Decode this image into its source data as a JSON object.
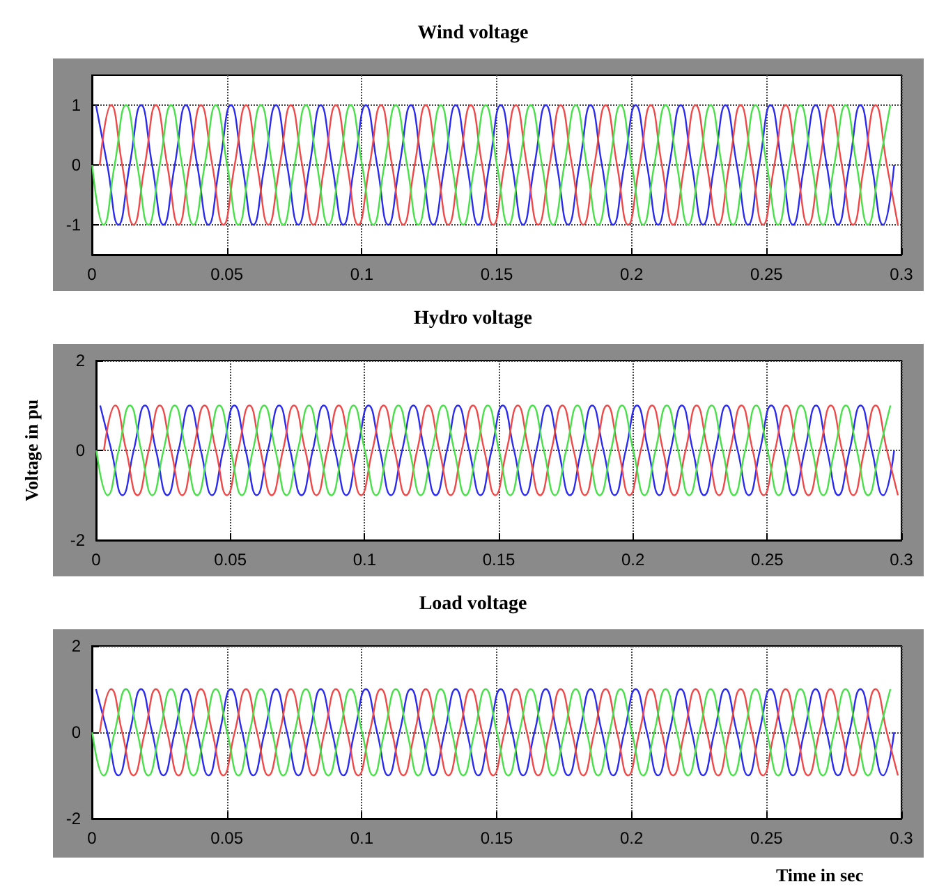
{
  "chart_data": [
    {
      "type": "line",
      "title": "Wind voltage",
      "xlim": [
        0,
        0.3
      ],
      "xticks": [
        0,
        0.05,
        0.1,
        0.15,
        0.2,
        0.25,
        0.3
      ],
      "ylim": [
        -1.5,
        1.5
      ],
      "yticks": [
        -1,
        0,
        1
      ],
      "grid": true,
      "series": [
        {
          "color": "#2a2af0",
          "x": [
            0.0015,
            0.0057,
            0.0098,
            0.014,
            0.0182,
            0.0223,
            0.0265,
            0.0307,
            0.0348,
            0.039,
            0.0432,
            0.0473,
            0.0515,
            0.0557,
            0.0598,
            0.064,
            0.0682,
            0.0723,
            0.0765,
            0.0807,
            0.0848,
            0.089,
            0.0932,
            0.0973,
            0.1015,
            0.1057,
            0.1098,
            0.114,
            0.1182,
            0.1223,
            0.1265,
            0.1307,
            0.1348,
            0.139,
            0.1432,
            0.1473,
            0.1515,
            0.1557,
            0.1598,
            0.164,
            0.1682,
            0.1723,
            0.1765,
            0.1807,
            0.1848,
            0.189,
            0.1932,
            0.1973,
            0.2015,
            0.2057,
            0.2098,
            0.214,
            0.2182,
            0.2223,
            0.2265,
            0.2307,
            0.2348,
            0.239,
            0.2432,
            0.2473,
            0.2515,
            0.2557,
            0.2598,
            0.264,
            0.2682,
            0.2723,
            0.2765,
            0.2807,
            0.2848,
            0.289,
            0.2932,
            0.2973
          ],
          "values": [
            1,
            0,
            -1,
            0,
            1,
            0,
            -1,
            0,
            1,
            0,
            -1,
            0,
            1,
            0,
            -1,
            0,
            1,
            0,
            -1,
            0,
            1,
            0,
            -1,
            0,
            1,
            0,
            -1,
            0,
            1,
            0,
            -1,
            0,
            1,
            0,
            -1,
            0,
            1,
            0,
            -1,
            0,
            1,
            0,
            -1,
            0,
            1,
            0,
            -1,
            0,
            1,
            0,
            -1,
            0,
            1,
            0,
            -1,
            0,
            1,
            0,
            -1,
            0,
            1,
            0,
            -1,
            0,
            1,
            0,
            -1,
            0,
            1,
            0,
            -1,
            0
          ]
        },
        {
          "color": "#f04848",
          "x": [
            0.0029,
            0.0071,
            0.0112,
            0.0154,
            0.0196,
            0.0237,
            0.0279,
            0.0321,
            0.0362,
            0.0404,
            0.0446,
            0.0487,
            0.0529,
            0.0571,
            0.0612,
            0.0654,
            0.0696,
            0.0737,
            0.0779,
            0.0821,
            0.0862,
            0.0904,
            0.0946,
            0.0987,
            0.1029,
            0.1071,
            0.1112,
            0.1154,
            0.1196,
            0.1237,
            0.1279,
            0.1321,
            0.1362,
            0.1404,
            0.1446,
            0.1487,
            0.1529,
            0.1571,
            0.1612,
            0.1654,
            0.1696,
            0.1737,
            0.1779,
            0.1821,
            0.1862,
            0.1904,
            0.1946,
            0.1987,
            0.2029,
            0.2071,
            0.2112,
            0.2154,
            0.2196,
            0.2237,
            0.2279,
            0.2321,
            0.2362,
            0.2404,
            0.2446,
            0.2487,
            0.2529,
            0.2571,
            0.2612,
            0.2654,
            0.2696,
            0.2737,
            0.2779,
            0.2821,
            0.2862,
            0.2904,
            0.2946,
            0.2987
          ],
          "values": [
            0,
            1,
            0,
            -1,
            0,
            1,
            0,
            -1,
            0,
            1,
            0,
            -1,
            0,
            1,
            0,
            -1,
            0,
            1,
            0,
            -1,
            0,
            1,
            0,
            -1,
            0,
            1,
            0,
            -1,
            0,
            1,
            0,
            -1,
            0,
            1,
            0,
            -1,
            0,
            1,
            0,
            -1,
            0,
            1,
            0,
            -1,
            0,
            1,
            0,
            -1,
            0,
            1,
            0,
            -1,
            0,
            1,
            0,
            -1,
            0,
            1,
            0,
            -1,
            0,
            1,
            0,
            -1,
            0,
            1,
            0,
            -1,
            0,
            1,
            0,
            -1
          ]
        },
        {
          "color": "#48e048",
          "x": [
            0.0001,
            0.0043,
            0.0084,
            0.0126,
            0.0168,
            0.0209,
            0.0251,
            0.0293,
            0.0334,
            0.0376,
            0.0418,
            0.0459,
            0.0501,
            0.0543,
            0.0584,
            0.0626,
            0.0668,
            0.0709,
            0.0751,
            0.0793,
            0.0834,
            0.0876,
            0.0918,
            0.0959,
            0.1001,
            0.1043,
            0.1084,
            0.1126,
            0.1168,
            0.1209,
            0.1251,
            0.1293,
            0.1334,
            0.1376,
            0.1418,
            0.1459,
            0.1501,
            0.1543,
            0.1584,
            0.1626,
            0.1668,
            0.1709,
            0.1751,
            0.1793,
            0.1834,
            0.1876,
            0.1918,
            0.1959,
            0.2001,
            0.2043,
            0.2084,
            0.2126,
            0.2168,
            0.2209,
            0.2251,
            0.2293,
            0.2334,
            0.2376,
            0.2418,
            0.2459,
            0.2501,
            0.2543,
            0.2584,
            0.2626,
            0.2668,
            0.2709,
            0.2751,
            0.2793,
            0.2834,
            0.2876,
            0.2918,
            0.2959
          ],
          "values": [
            0,
            -1,
            0,
            1,
            0,
            -1,
            0,
            1,
            0,
            -1,
            0,
            1,
            0,
            -1,
            0,
            1,
            0,
            -1,
            0,
            1,
            0,
            -1,
            0,
            1,
            0,
            -1,
            0,
            1,
            0,
            -1,
            0,
            1,
            0,
            -1,
            0,
            1,
            0,
            -1,
            0,
            1,
            0,
            -1,
            0,
            1,
            0,
            -1,
            0,
            1,
            0,
            -1,
            0,
            1,
            0,
            -1,
            0,
            1,
            0,
            -1,
            0,
            1,
            0,
            -1,
            0,
            1,
            0,
            -1,
            0,
            1,
            0,
            -1,
            0,
            1
          ]
        }
      ]
    },
    {
      "type": "line",
      "title": "Hydro voltage",
      "ylabel": "Voltage in pu",
      "xlim": [
        0,
        0.3
      ],
      "xticks": [
        0,
        0.05,
        0.1,
        0.15,
        0.2,
        0.25,
        0.3
      ],
      "ylim": [
        -2,
        2
      ],
      "yticks": [
        -2,
        0,
        2
      ],
      "grid": true,
      "series": [
        {
          "color": "#2a2af0",
          "x": [
            0.0015,
            0.0057,
            0.0098,
            0.014,
            0.0182,
            0.0223,
            0.0265,
            0.0307,
            0.0348,
            0.039,
            0.0432,
            0.0473,
            0.0515,
            0.0557,
            0.0598,
            0.064,
            0.0682,
            0.0723,
            0.0765,
            0.0807,
            0.0848,
            0.089,
            0.0932,
            0.0973,
            0.1015,
            0.1057,
            0.1098,
            0.114,
            0.1182,
            0.1223,
            0.1265,
            0.1307,
            0.1348,
            0.139,
            0.1432,
            0.1473,
            0.1515,
            0.1557,
            0.1598,
            0.164,
            0.1682,
            0.1723,
            0.1765,
            0.1807,
            0.1848,
            0.189,
            0.1932,
            0.1973,
            0.2015,
            0.2057,
            0.2098,
            0.214,
            0.2182,
            0.2223,
            0.2265,
            0.2307,
            0.2348,
            0.239,
            0.2432,
            0.2473,
            0.2515,
            0.2557,
            0.2598,
            0.264,
            0.2682,
            0.2723,
            0.2765,
            0.2807,
            0.2848,
            0.289,
            0.2932,
            0.2973
          ],
          "values": [
            1,
            0,
            -1,
            0,
            1,
            0,
            -1,
            0,
            1,
            0,
            -1,
            0,
            1,
            0,
            -1,
            0,
            1,
            0,
            -1,
            0,
            1,
            0,
            -1,
            0,
            1,
            0,
            -1,
            0,
            1,
            0,
            -1,
            0,
            1,
            0,
            -1,
            0,
            1,
            0,
            -1,
            0,
            1,
            0,
            -1,
            0,
            1,
            0,
            -1,
            0,
            1,
            0,
            -1,
            0,
            1,
            0,
            -1,
            0,
            1,
            0,
            -1,
            0,
            1,
            0,
            -1,
            0,
            1,
            0,
            -1,
            0,
            1,
            0,
            -1,
            0
          ]
        },
        {
          "color": "#f04848",
          "x": [
            0.0029,
            0.0071,
            0.0112,
            0.0154,
            0.0196,
            0.0237,
            0.0279,
            0.0321,
            0.0362,
            0.0404,
            0.0446,
            0.0487,
            0.0529,
            0.0571,
            0.0612,
            0.0654,
            0.0696,
            0.0737,
            0.0779,
            0.0821,
            0.0862,
            0.0904,
            0.0946,
            0.0987,
            0.1029,
            0.1071,
            0.1112,
            0.1154,
            0.1196,
            0.1237,
            0.1279,
            0.1321,
            0.1362,
            0.1404,
            0.1446,
            0.1487,
            0.1529,
            0.1571,
            0.1612,
            0.1654,
            0.1696,
            0.1737,
            0.1779,
            0.1821,
            0.1862,
            0.1904,
            0.1946,
            0.1987,
            0.2029,
            0.2071,
            0.2112,
            0.2154,
            0.2196,
            0.2237,
            0.2279,
            0.2321,
            0.2362,
            0.2404,
            0.2446,
            0.2487,
            0.2529,
            0.2571,
            0.2612,
            0.2654,
            0.2696,
            0.2737,
            0.2779,
            0.2821,
            0.2862,
            0.2904,
            0.2946,
            0.2987
          ],
          "values": [
            0,
            1,
            0,
            -1,
            0,
            1,
            0,
            -1,
            0,
            1,
            0,
            -1,
            0,
            1,
            0,
            -1,
            0,
            1,
            0,
            -1,
            0,
            1,
            0,
            -1,
            0,
            1,
            0,
            -1,
            0,
            1,
            0,
            -1,
            0,
            1,
            0,
            -1,
            0,
            1,
            0,
            -1,
            0,
            1,
            0,
            -1,
            0,
            1,
            0,
            -1,
            0,
            1,
            0,
            -1,
            0,
            1,
            0,
            -1,
            0,
            1,
            0,
            -1,
            0,
            1,
            0,
            -1,
            0,
            1,
            0,
            -1,
            0,
            1,
            0,
            -1
          ]
        },
        {
          "color": "#48e048",
          "x": [
            0.0001,
            0.0043,
            0.0084,
            0.0126,
            0.0168,
            0.0209,
            0.0251,
            0.0293,
            0.0334,
            0.0376,
            0.0418,
            0.0459,
            0.0501,
            0.0543,
            0.0584,
            0.0626,
            0.0668,
            0.0709,
            0.0751,
            0.0793,
            0.0834,
            0.0876,
            0.0918,
            0.0959,
            0.1001,
            0.1043,
            0.1084,
            0.1126,
            0.1168,
            0.1209,
            0.1251,
            0.1293,
            0.1334,
            0.1376,
            0.1418,
            0.1459,
            0.1501,
            0.1543,
            0.1584,
            0.1626,
            0.1668,
            0.1709,
            0.1751,
            0.1793,
            0.1834,
            0.1876,
            0.1918,
            0.1959,
            0.2001,
            0.2043,
            0.2084,
            0.2126,
            0.2168,
            0.2209,
            0.2251,
            0.2293,
            0.2334,
            0.2376,
            0.2418,
            0.2459,
            0.2501,
            0.2543,
            0.2584,
            0.2626,
            0.2668,
            0.2709,
            0.2751,
            0.2793,
            0.2834,
            0.2876,
            0.2918,
            0.2959
          ],
          "values": [
            0,
            -1,
            0,
            1,
            0,
            -1,
            0,
            1,
            0,
            -1,
            0,
            1,
            0,
            -1,
            0,
            1,
            0,
            -1,
            0,
            1,
            0,
            -1,
            0,
            1,
            0,
            -1,
            0,
            1,
            0,
            -1,
            0,
            1,
            0,
            -1,
            0,
            1,
            0,
            -1,
            0,
            1,
            0,
            -1,
            0,
            1,
            0,
            -1,
            0,
            1,
            0,
            -1,
            0,
            1,
            0,
            -1,
            0,
            1,
            0,
            -1,
            0,
            1,
            0,
            -1,
            0,
            1,
            0,
            -1,
            0,
            1,
            0,
            -1,
            0,
            1
          ]
        }
      ]
    },
    {
      "type": "line",
      "title": "Load voltage",
      "xlabel": "Time in sec",
      "xlim": [
        0,
        0.3
      ],
      "xticks": [
        0,
        0.05,
        0.1,
        0.15,
        0.2,
        0.25,
        0.3
      ],
      "ylim": [
        -2,
        2
      ],
      "yticks": [
        -2,
        0,
        2
      ],
      "grid": true,
      "series": [
        {
          "color": "#2a2af0",
          "x": [
            0.0015,
            0.0057,
            0.0098,
            0.014,
            0.0182,
            0.0223,
            0.0265,
            0.0307,
            0.0348,
            0.039,
            0.0432,
            0.0473,
            0.0515,
            0.0557,
            0.0598,
            0.064,
            0.0682,
            0.0723,
            0.0765,
            0.0807,
            0.0848,
            0.089,
            0.0932,
            0.0973,
            0.1015,
            0.1057,
            0.1098,
            0.114,
            0.1182,
            0.1223,
            0.1265,
            0.1307,
            0.1348,
            0.139,
            0.1432,
            0.1473,
            0.1515,
            0.1557,
            0.1598,
            0.164,
            0.1682,
            0.1723,
            0.1765,
            0.1807,
            0.1848,
            0.189,
            0.1932,
            0.1973,
            0.2015,
            0.2057,
            0.2098,
            0.214,
            0.2182,
            0.2223,
            0.2265,
            0.2307,
            0.2348,
            0.239,
            0.2432,
            0.2473,
            0.2515,
            0.2557,
            0.2598,
            0.264,
            0.2682,
            0.2723,
            0.2765,
            0.2807,
            0.2848,
            0.289,
            0.2932,
            0.2973
          ],
          "values": [
            1,
            0,
            -1,
            0,
            1,
            0,
            -1,
            0,
            1,
            0,
            -1,
            0,
            1,
            0,
            -1,
            0,
            1,
            0,
            -1,
            0,
            1,
            0,
            -1,
            0,
            1,
            0,
            -1,
            0,
            1,
            0,
            -1,
            0,
            1,
            0,
            -1,
            0,
            1,
            0,
            -1,
            0,
            1,
            0,
            -1,
            0,
            1,
            0,
            -1,
            0,
            1,
            0,
            -1,
            0,
            1,
            0,
            -1,
            0,
            1,
            0,
            -1,
            0,
            1,
            0,
            -1,
            0,
            1,
            0,
            -1,
            0,
            1,
            0,
            -1,
            0
          ]
        },
        {
          "color": "#f04848",
          "x": [
            0.0029,
            0.0071,
            0.0112,
            0.0154,
            0.0196,
            0.0237,
            0.0279,
            0.0321,
            0.0362,
            0.0404,
            0.0446,
            0.0487,
            0.0529,
            0.0571,
            0.0612,
            0.0654,
            0.0696,
            0.0737,
            0.0779,
            0.0821,
            0.0862,
            0.0904,
            0.0946,
            0.0987,
            0.1029,
            0.1071,
            0.1112,
            0.1154,
            0.1196,
            0.1237,
            0.1279,
            0.1321,
            0.1362,
            0.1404,
            0.1446,
            0.1487,
            0.1529,
            0.1571,
            0.1612,
            0.1654,
            0.1696,
            0.1737,
            0.1779,
            0.1821,
            0.1862,
            0.1904,
            0.1946,
            0.1987,
            0.2029,
            0.2071,
            0.2112,
            0.2154,
            0.2196,
            0.2237,
            0.2279,
            0.2321,
            0.2362,
            0.2404,
            0.2446,
            0.2487,
            0.2529,
            0.2571,
            0.2612,
            0.2654,
            0.2696,
            0.2737,
            0.2779,
            0.2821,
            0.2862,
            0.2904,
            0.2946,
            0.2987
          ],
          "values": [
            0,
            1,
            0,
            -1,
            0,
            1,
            0,
            -1,
            0,
            1,
            0,
            -1,
            0,
            1,
            0,
            -1,
            0,
            1,
            0,
            -1,
            0,
            1,
            0,
            -1,
            0,
            1,
            0,
            -1,
            0,
            1,
            0,
            -1,
            0,
            1,
            0,
            -1,
            0,
            1,
            0,
            -1,
            0,
            1,
            0,
            -1,
            0,
            1,
            0,
            -1,
            0,
            1,
            0,
            -1,
            0,
            1,
            0,
            -1,
            0,
            1,
            0,
            -1,
            0,
            1,
            0,
            -1,
            0,
            1,
            0,
            -1,
            0,
            1,
            0,
            -1
          ]
        },
        {
          "color": "#48e048",
          "x": [
            0.0001,
            0.0043,
            0.0084,
            0.0126,
            0.0168,
            0.0209,
            0.0251,
            0.0293,
            0.0334,
            0.0376,
            0.0418,
            0.0459,
            0.0501,
            0.0543,
            0.0584,
            0.0626,
            0.0668,
            0.0709,
            0.0751,
            0.0793,
            0.0834,
            0.0876,
            0.0918,
            0.0959,
            0.1001,
            0.1043,
            0.1084,
            0.1126,
            0.1168,
            0.1209,
            0.1251,
            0.1293,
            0.1334,
            0.1376,
            0.1418,
            0.1459,
            0.1501,
            0.1543,
            0.1584,
            0.1626,
            0.1668,
            0.1709,
            0.1751,
            0.1793,
            0.1834,
            0.1876,
            0.1918,
            0.1959,
            0.2001,
            0.2043,
            0.2084,
            0.2126,
            0.2168,
            0.2209,
            0.2251,
            0.2293,
            0.2334,
            0.2376,
            0.2418,
            0.2459,
            0.2501,
            0.2543,
            0.2584,
            0.2626,
            0.2668,
            0.2709,
            0.2751,
            0.2793,
            0.2834,
            0.2876,
            0.2918,
            0.2959
          ],
          "values": [
            0,
            -1,
            0,
            1,
            0,
            -1,
            0,
            1,
            0,
            -1,
            0,
            1,
            0,
            -1,
            0,
            1,
            0,
            -1,
            0,
            1,
            0,
            -1,
            0,
            1,
            0,
            -1,
            0,
            1,
            0,
            -1,
            0,
            1,
            0,
            -1,
            0,
            1,
            0,
            -1,
            0,
            1,
            0,
            -1,
            0,
            1,
            0,
            -1,
            0,
            1,
            0,
            -1,
            0,
            1,
            0,
            -1,
            0,
            1,
            0,
            -1,
            0,
            1,
            0,
            -1,
            0,
            1,
            0,
            -1,
            0,
            1,
            0,
            -1,
            0,
            1
          ]
        }
      ]
    }
  ]
}
